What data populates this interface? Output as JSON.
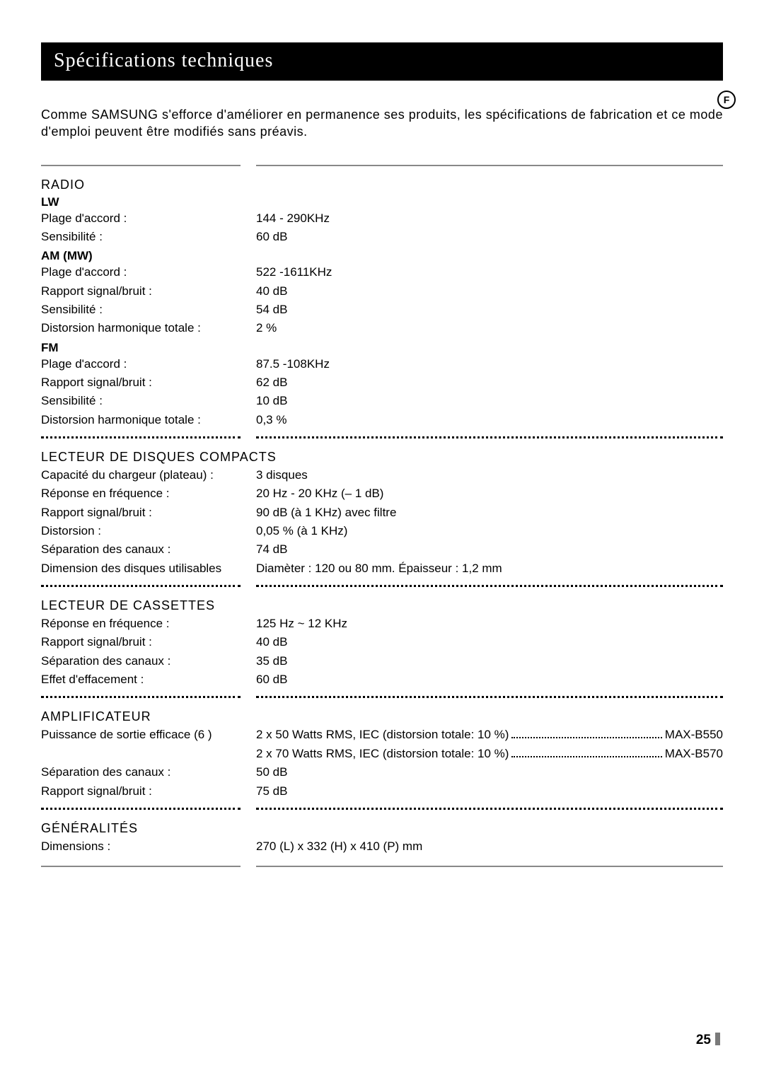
{
  "title": "Spécifications techniques",
  "badge": "F",
  "intro": "Comme SAMSUNG s'efforce d'améliorer en permanence ses produits, les spécifications de fabrication et ce mode d'emploi peuvent être modifiés sans préavis.",
  "sections": {
    "radio": {
      "title": "RADIO",
      "lw_label": "LW",
      "lw": [
        {
          "l": "Plage d'accord :",
          "r": "144 - 290KHz"
        },
        {
          "l": "Sensibilité :",
          "r": "60 dB"
        }
      ],
      "am_label": "AM (MW)",
      "am": [
        {
          "l": "Plage d'accord :",
          "r": "522 -1611KHz"
        },
        {
          "l": "Rapport signal/bruit :",
          "r": "40 dB"
        },
        {
          "l": "Sensibilité :",
          "r": "54 dB"
        },
        {
          "l": "Distorsion harmonique totale :",
          "r": "2 %"
        }
      ],
      "fm_label": "FM",
      "fm": [
        {
          "l": "Plage d'accord :",
          "r": "87.5 -108KHz"
        },
        {
          "l": "Rapport signal/bruit :",
          "r": "62 dB"
        },
        {
          "l": "Sensibilité :",
          "r": "10 dB"
        },
        {
          "l": "Distorsion harmonique totale :",
          "r": "0,3 %"
        }
      ]
    },
    "cd": {
      "title": "LECTEUR DE DISQUES COMPACTS",
      "rows": [
        {
          "l": "Capacité du chargeur (plateau) :",
          "r": "3 disques"
        },
        {
          "l": "Réponse en fréquence :",
          "r": "20 Hz - 20 KHz (– 1 dB)"
        },
        {
          "l": "Rapport signal/bruit :",
          "r": "90 dB (à 1 KHz) avec filtre"
        },
        {
          "l": "Distorsion :",
          "r": "0,05 % (à 1 KHz)"
        },
        {
          "l": "Séparation des canaux :",
          "r": "74 dB"
        },
        {
          "l": "Dimension des disques utilisables",
          "r": "Diamèter :  120 ou 80 mm. Épaisseur : 1,2 mm"
        }
      ]
    },
    "cassette": {
      "title": "LECTEUR DE CASSETTES",
      "rows": [
        {
          "l": "Réponse en fréquence :",
          "r": "125 Hz ~ 12 KHz"
        },
        {
          "l": "Rapport signal/bruit :",
          "r": "40 dB"
        },
        {
          "l": "Séparation des canaux :",
          "r": "35 dB"
        },
        {
          "l": "Effet d'effacement :",
          "r": "60 dB"
        }
      ]
    },
    "amp": {
      "title": "AMPLIFICATEUR",
      "power_label": "Puissance de sortie efficace (6    )",
      "power": [
        {
          "spec": "2 x 50 Watts RMS, IEC (distorsion totale: 10 %)",
          "model": "MAX-B550"
        },
        {
          "spec": "2 x 70 Watts RMS, IEC (distorsion totale: 10 %)",
          "model": "MAX-B570"
        }
      ],
      "rows": [
        {
          "l": "Séparation des canaux :",
          "r": "50 dB"
        },
        {
          "l": "Rapport signal/bruit :",
          "r": "75 dB"
        }
      ]
    },
    "general": {
      "title": "GÉNÉRALITÉS",
      "rows": [
        {
          "l": "Dimensions :",
          "r": "270 (L) x 332 (H) x 410 (P) mm"
        }
      ]
    }
  },
  "page_number": "25"
}
